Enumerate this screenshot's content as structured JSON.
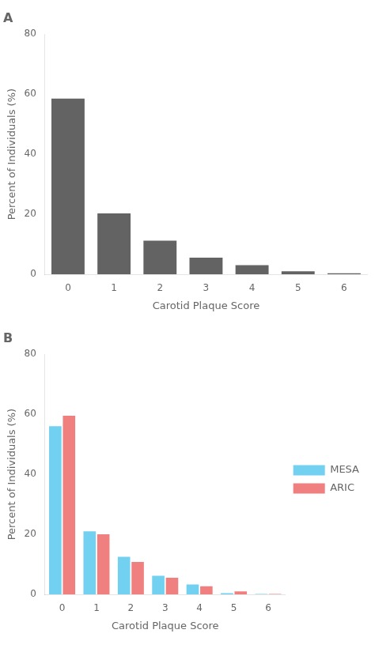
{
  "chart_data": [
    {
      "type": "bar",
      "title": "A",
      "categories": [
        0,
        1,
        2,
        3,
        4,
        5,
        6
      ],
      "values": [
        58.5,
        20.3,
        11.2,
        5.5,
        3.0,
        1.0,
        0.3
      ],
      "color": "#636363",
      "xlabel": "Carotid Plaque Score",
      "ylabel": "Percent of Individuals (%)",
      "ylim": [
        0,
        80
      ],
      "yticks": [
        0,
        20,
        40,
        60,
        80
      ],
      "grid": false
    },
    {
      "type": "bar",
      "title": "B",
      "categories": [
        0,
        1,
        2,
        3,
        4,
        5,
        6
      ],
      "series": [
        {
          "name": "MESA",
          "color": "#72d0f0",
          "values": [
            56.0,
            21.0,
            12.5,
            6.2,
            3.3,
            0.4,
            0.1
          ]
        },
        {
          "name": "ARIC",
          "color": "#f08080",
          "values": [
            59.5,
            20.0,
            10.8,
            5.5,
            2.7,
            1.0,
            0.1
          ]
        }
      ],
      "xlabel": "Carotid Plaque Score",
      "ylabel": "Percent of Individuals (%)",
      "ylim": [
        0,
        80
      ],
      "yticks": [
        0,
        20,
        40,
        60,
        80
      ],
      "grid": false,
      "legend": "right"
    }
  ]
}
